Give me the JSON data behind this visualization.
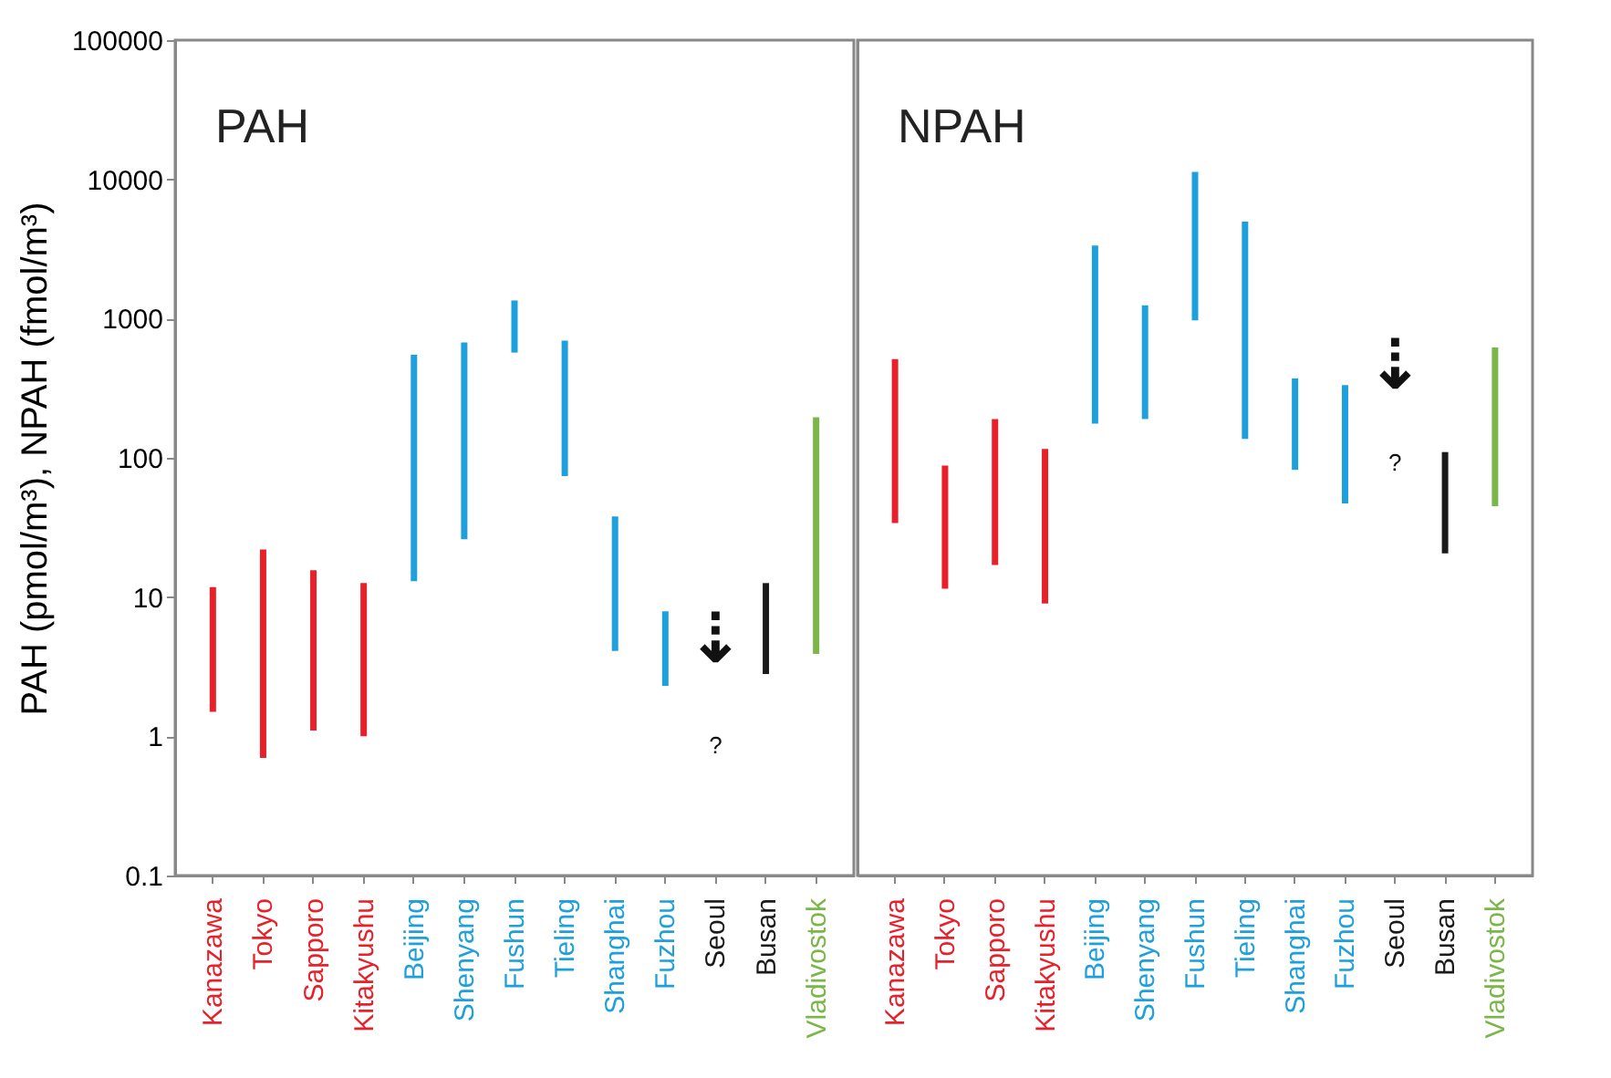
{
  "chart_data": [
    {
      "type": "bar",
      "title": "PAH",
      "ylabel": "PAH (pmol/m³), NPAH (fmol/m³)",
      "log": true,
      "grid": false,
      "categories": [
        "Kanazawa",
        "Tokyo",
        "Sapporo",
        "Kitakyushu",
        "Beijing",
        "Shenyang",
        "Fushun",
        "Tieling",
        "Shanghai",
        "Fuzhou",
        "Seoul",
        "Busan",
        "Vladivostok"
      ],
      "base": [
        1.5,
        0.7,
        1.1,
        1.0,
        13,
        26,
        570,
        74,
        4.1,
        2.3,
        null,
        2.8,
        3.9
      ],
      "values": [
        10.3,
        21.3,
        14.5,
        11.6,
        537,
        649,
        780,
        621,
        33.9,
        5.6,
        null,
        9.8,
        192.1
      ],
      "colors": [
        "#e8202a",
        "#e8202a",
        "#e8202a",
        "#e8202a",
        "#1ea0dc",
        "#1ea0dc",
        "#1ea0dc",
        "#1ea0dc",
        "#1ea0dc",
        "#1ea0dc",
        "#1a1a1a",
        "#1a1a1a",
        "#7ab648"
      ],
      "ylim": [
        0.1,
        100000
      ],
      "yticks": [
        0.1,
        1,
        10,
        100,
        1000,
        10000,
        100000
      ],
      "annotations": [
        "⇣",
        "?"
      ]
    },
    {
      "type": "bar",
      "title": "NPAH",
      "log": true,
      "grid": false,
      "tick_labels": "x",
      "categories": [
        "Kanazawa",
        "Tokyo",
        "Sapporo",
        "Kitakyushu",
        "Beijing",
        "Shenyang",
        "Fushun",
        "Tieling",
        "Shanghai",
        "Fuzhou",
        "Seoul",
        "Busan",
        "Vladivostok"
      ],
      "base": [
        34,
        11.5,
        17,
        9,
        176,
        190,
        970,
        137,
        82,
        47,
        null,
        20.6,
        45
      ],
      "values": [
        478,
        76.5,
        173,
        107,
        3174,
        1055,
        10330,
        4833,
        290,
        286,
        null,
        89.4,
        575
      ],
      "colors": [
        "#e8202a",
        "#e8202a",
        "#e8202a",
        "#e8202a",
        "#1ea0dc",
        "#1ea0dc",
        "#1ea0dc",
        "#1ea0dc",
        "#1ea0dc",
        "#1ea0dc",
        "#1a1a1a",
        "#1a1a1a",
        "#7ab648"
      ],
      "ylim": [
        0.1,
        100000
      ],
      "yticks": [
        0.1,
        1,
        10,
        100,
        1000,
        10000,
        100000
      ],
      "annotations": [
        "⇣",
        "?"
      ]
    }
  ]
}
